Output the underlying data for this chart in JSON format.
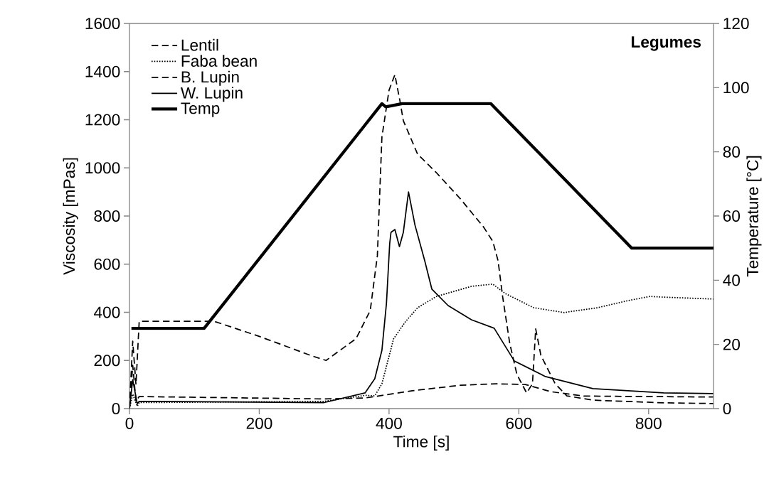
{
  "chart_data": {
    "type": "line",
    "xlabel": "Time [s]",
    "ylabel": "Viscosity [mPas]",
    "y2label": "Temperature [°C]",
    "annotations": [
      "**Legumes**"
    ],
    "xlim": [
      0,
      900
    ],
    "xticks": [
      0,
      200,
      400,
      600,
      800
    ],
    "ylim": [
      0,
      1600
    ],
    "yticks": [
      0,
      200,
      400,
      600,
      800,
      1000,
      1200,
      1400,
      1600
    ],
    "y2lim": [
      0,
      120
    ],
    "y2ticks": [
      0,
      20,
      40,
      60,
      80,
      100,
      120
    ],
    "legend": "top left",
    "grid": false,
    "marker": "none",
    "series": [
      {
        "name": "Lentil",
        "color": "#000000",
        "line_style": "dashed",
        "x": [
          0,
          5,
          10,
          15,
          130,
          200,
          280,
          303,
          349,
          371,
          382,
          389,
          400,
          409,
          417,
          422,
          444,
          473,
          510,
          546,
          560,
          568,
          575,
          586,
          597,
          612,
          621,
          626,
          634,
          656,
          674,
          714,
          823,
          900
        ],
        "values": [
          0,
          280,
          100,
          363,
          363,
          300,
          220,
          200,
          290,
          407,
          635,
          1128,
          1323,
          1387,
          1275,
          1196,
          1057,
          980,
          871,
          753,
          694,
          614,
          466,
          271,
          142,
          65,
          103,
          331,
          221,
          103,
          53,
          35,
          24,
          21
        ]
      },
      {
        "name": "Faba bean",
        "color": "#000000",
        "line_style": "dotted",
        "x": [
          0,
          5,
          12,
          15,
          300,
          363,
          378,
          389,
          407,
          425,
          444,
          473,
          527,
          560,
          579,
          623,
          670,
          721,
          769,
          802,
          823,
          900
        ],
        "values": [
          0,
          60,
          10,
          25,
          30,
          55,
          53,
          103,
          290,
          360,
          419,
          466,
          508,
          517,
          478,
          419,
          399,
          419,
          449,
          466,
          463,
          455
        ]
      },
      {
        "name": "B. Lupin",
        "color": "#000000",
        "line_style": "dashed",
        "x": [
          0,
          5,
          10,
          15,
          300,
          363,
          436,
          510,
          565,
          610,
          650,
          700,
          800,
          900
        ],
        "values": [
          0,
          180,
          30,
          50,
          40,
          44,
          74,
          97,
          103,
          100,
          70,
          52,
          50,
          48
        ]
      },
      {
        "name": "W. Lupin",
        "color": "#000000",
        "line_style": "solid",
        "x": [
          0,
          5,
          12,
          15,
          300,
          363,
          378,
          389,
          396,
          401,
          403,
          409,
          416,
          422,
          430,
          440,
          455,
          466,
          491,
          527,
          562,
          593,
          641,
          714,
          823,
          900
        ],
        "values": [
          0,
          120,
          20,
          30,
          25,
          65,
          124,
          242,
          437,
          685,
          732,
          744,
          673,
          732,
          900,
          762,
          614,
          496,
          428,
          369,
          334,
          198,
          133,
          83,
          65,
          62
        ]
      },
      {
        "name": "Temp",
        "color": "#000000",
        "line_style": "solid",
        "axis": "y2",
        "x": [
          3,
          115,
          389,
          395,
          420,
          557,
          774,
          900
        ],
        "values": [
          25,
          25,
          95,
          94,
          95,
          95,
          50,
          50
        ]
      }
    ]
  }
}
